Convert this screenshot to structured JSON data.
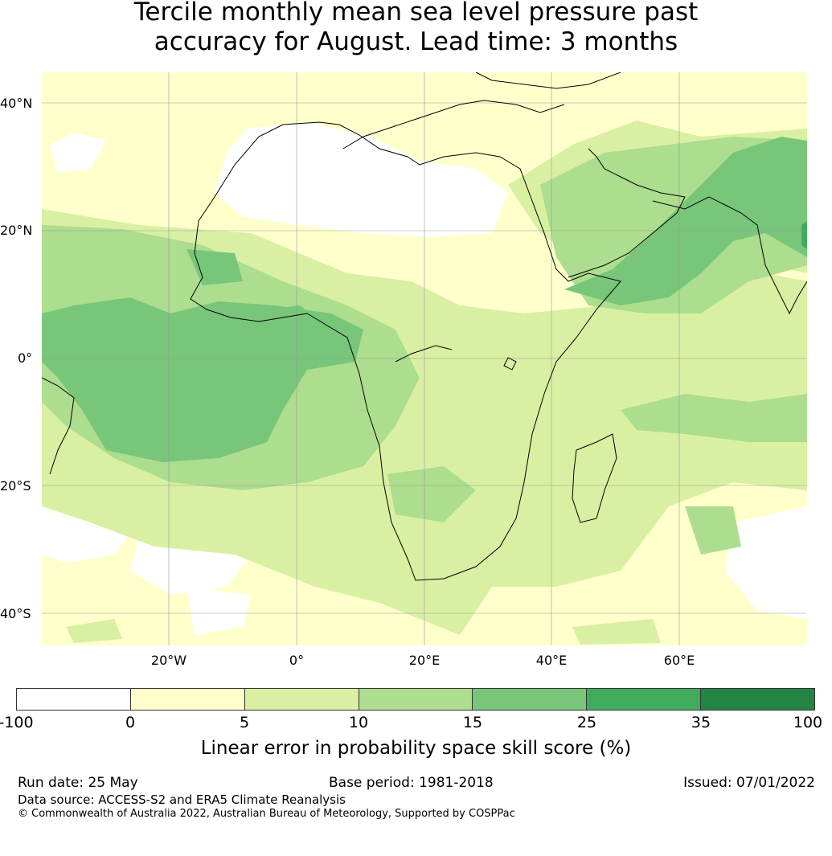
{
  "title": {
    "line1": "Tercile monthly mean sea level pressure past",
    "line2": "accuracy for August. Lead time: 3 months"
  },
  "axes": {
    "lat_labels": [
      "40°N",
      "20°N",
      "0°",
      "20°S",
      "40°S"
    ],
    "lon_labels": [
      "20°W",
      "0°",
      "20°E",
      "40°E",
      "60°E"
    ]
  },
  "colorbar": {
    "label": "Linear error in probability space skill score (%)",
    "ticks": [
      "-100",
      "0",
      "5",
      "10",
      "15",
      "25",
      "35",
      "100"
    ],
    "colors": [
      "#ffffff",
      "#ffffcc",
      "#d9f0a3",
      "#addd8e",
      "#78c679",
      "#41ab5d",
      "#238443"
    ]
  },
  "footer": {
    "run_date": "Run date: 25 May",
    "base_period": "Base period: 1981-2018",
    "issued": "Issued: 07/01/2022",
    "data_source": "Data source: ACCESS-S2 and ERA5 Climate Reanalysis",
    "copyright": "© Commonwealth of Australia 2022, Australian Bureau of Meteorology, Supported by COSPPac"
  }
}
